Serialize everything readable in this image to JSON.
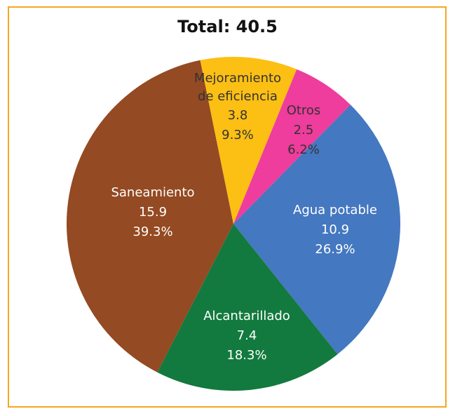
{
  "chart_data": {
    "type": "pie",
    "title": "Total: 40.5",
    "categories": [
      "Agua potable",
      "Alcantarillado",
      "Saneamiento",
      "Mejoramiento de eficiencia",
      "Otros"
    ],
    "values": [
      10.9,
      7.4,
      15.9,
      3.8,
      2.5
    ],
    "percent_labels": [
      "26.9%",
      "18.3%",
      "39.3%",
      "9.3%",
      "6.2%"
    ],
    "colors": [
      "#4478c0",
      "#127a3e",
      "#944a22",
      "#fcbf14",
      "#ee3d9c"
    ]
  }
}
